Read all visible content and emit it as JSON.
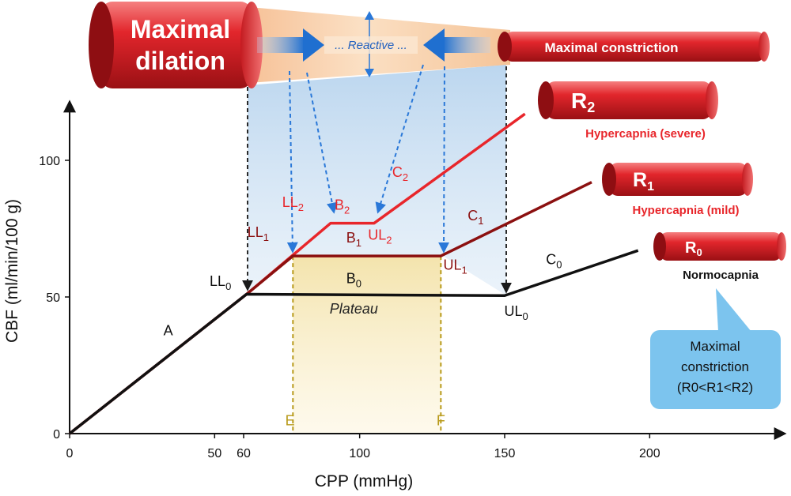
{
  "chart_data": {
    "type": "line",
    "title": "",
    "xlabel": "CPP (mmHg)",
    "ylabel": "CBF (ml/min/100 g)",
    "xlim": [
      0,
      245
    ],
    "ylim": [
      0,
      122
    ],
    "x_ticks": [
      0,
      50,
      60,
      100,
      150,
      200
    ],
    "y_ticks": [
      0,
      50,
      100
    ],
    "grid": false,
    "series": [
      {
        "name": "R0",
        "color": "#111111",
        "points": [
          [
            0,
            0
          ],
          [
            61,
            51
          ],
          [
            150,
            50.5
          ],
          [
            196,
            67
          ]
        ]
      },
      {
        "name": "R1",
        "color": "#8b1010",
        "points": [
          [
            0,
            0
          ],
          [
            61,
            51
          ],
          [
            77,
            65
          ],
          [
            128,
            65
          ],
          [
            180,
            92
          ]
        ]
      },
      {
        "name": "R2",
        "color": "#e8262b",
        "points": [
          [
            0,
            0
          ],
          [
            61,
            51
          ],
          [
            90,
            77
          ],
          [
            105,
            77
          ],
          [
            157,
            117
          ]
        ]
      }
    ],
    "point_labels": [
      {
        "key": "A",
        "text": "A",
        "x": 34,
        "y": 36,
        "color": "#111111"
      },
      {
        "key": "LL0",
        "base": "LL",
        "sub": "0",
        "x": 52,
        "y": 54,
        "color": "#111111"
      },
      {
        "key": "B0",
        "base": "B",
        "sub": "0",
        "x": 98,
        "y": 55,
        "color": "#111111"
      },
      {
        "key": "UL0",
        "base": "UL",
        "sub": "0",
        "x": 154,
        "y": 43,
        "color": "#111111"
      },
      {
        "key": "C0",
        "base": "C",
        "sub": "0",
        "x": 167,
        "y": 62,
        "color": "#111111"
      },
      {
        "key": "LL1",
        "base": "LL",
        "sub": "1",
        "x": 65,
        "y": 72,
        "color": "#8b1010"
      },
      {
        "key": "B1",
        "base": "B",
        "sub": "1",
        "x": 98,
        "y": 70,
        "color": "#8b1010"
      },
      {
        "key": "UL1",
        "base": "UL",
        "sub": "1",
        "x": 133,
        "y": 60,
        "color": "#8b1010"
      },
      {
        "key": "C1",
        "base": "C",
        "sub": "1",
        "x": 140,
        "y": 78,
        "color": "#8b1010"
      },
      {
        "key": "LL2",
        "base": "LL",
        "sub": "2",
        "x": 77,
        "y": 83,
        "color": "#e8262b"
      },
      {
        "key": "B2",
        "base": "B",
        "sub": "2",
        "x": 94,
        "y": 82,
        "color": "#e8262b"
      },
      {
        "key": "UL2",
        "base": "UL",
        "sub": "2",
        "x": 107,
        "y": 71,
        "color": "#e8262b"
      },
      {
        "key": "C2",
        "base": "C",
        "sub": "2",
        "x": 114,
        "y": 94,
        "color": "#e8262b"
      },
      {
        "key": "Plateau",
        "text": "Plateau",
        "x": 98,
        "y": 44,
        "color": "#222222",
        "italic": true
      },
      {
        "key": "E",
        "text": "E",
        "x": 76,
        "y": 3,
        "color": "#b89a1a"
      },
      {
        "key": "F",
        "text": "F",
        "x": 128,
        "y": 3,
        "color": "#b89a1a"
      }
    ],
    "plateau_band": {
      "x_from": 77,
      "x_to": 128,
      "color": "#f5e6b0"
    },
    "guide_lines": [
      {
        "from": [
          77,
          65
        ],
        "to": [
          77,
          0
        ],
        "color": "#b89a1a"
      },
      {
        "from": [
          128,
          65
        ],
        "to": [
          128,
          0
        ],
        "color": "#b89a1a"
      }
    ]
  },
  "top_banner": {
    "max_dilation_line1": "Maximal",
    "max_dilation_line2": "dilation",
    "reactive": "... Reactive ...",
    "max_constriction": "Maximal constriction"
  },
  "vessels": [
    {
      "key": "R2",
      "base": "R",
      "sub": "2",
      "caption": "Hypercapnia (severe)",
      "caption_color": "#e8262b"
    },
    {
      "key": "R1",
      "base": "R",
      "sub": "1",
      "caption": "Hypercapnia (mild)",
      "caption_color": "#e8262b"
    },
    {
      "key": "R0",
      "base": "R",
      "sub": "0",
      "caption": "Normocapnia",
      "caption_color": "#111111"
    }
  ],
  "callout": {
    "line1": "Maximal",
    "line2": "constriction",
    "line3": "(R0<R1<R2)"
  },
  "colors": {
    "vessel_red": "#d8232a",
    "vessel_highlight": "#f36a6a",
    "arrow_blue": "#1f6fd0",
    "callout_bg": "#7cc4ee",
    "cone_orange": "#f7c99a"
  }
}
